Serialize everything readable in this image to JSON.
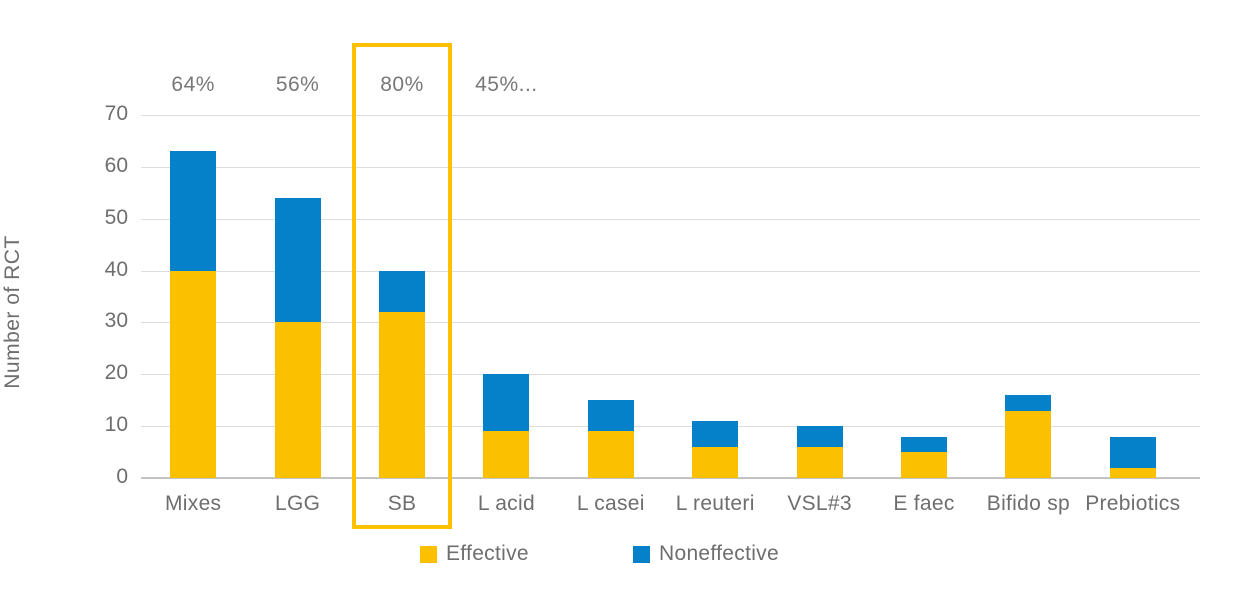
{
  "chart_data": {
    "type": "bar",
    "stacked": true,
    "title": "",
    "xlabel": "",
    "ylabel": "Number of RCT",
    "ylim": [
      0,
      70
    ],
    "yticks": [
      0,
      10,
      20,
      30,
      40,
      50,
      60,
      70
    ],
    "grid": true,
    "legend_position": "bottom",
    "categories": [
      "Mixes",
      "LGG",
      "SB",
      "L acid",
      "L casei",
      "L reuteri",
      "VSL#3",
      "E faec",
      "Bifido sp",
      "Prebiotics"
    ],
    "series": [
      {
        "name": "Effective",
        "color": "#FBC000",
        "values": [
          40,
          30,
          32,
          9,
          9,
          6,
          6,
          5,
          13,
          2
        ]
      },
      {
        "name": "Noneffective",
        "color": "#0581C9",
        "values": [
          23,
          24,
          8,
          11,
          6,
          5,
          4,
          3,
          3,
          6
        ]
      }
    ],
    "totals": [
      63,
      54,
      40,
      20,
      15,
      11,
      10,
      8,
      16,
      8
    ],
    "annotations": [
      {
        "category_index": 0,
        "text": "64%"
      },
      {
        "category_index": 1,
        "text": "56%"
      },
      {
        "category_index": 2,
        "text": "80%"
      },
      {
        "category_index": 3,
        "text": "45%..."
      }
    ],
    "highlight": {
      "category": "SB",
      "category_index": 2,
      "border_color": "#FFC000"
    }
  },
  "colors": {
    "effective": "#FBC000",
    "noneffective": "#0581C9",
    "gridline": "#dcdcdc",
    "axis_line": "#c3c3c3",
    "text": "#6e6e6e",
    "highlight_border": "#FFC000",
    "background": "#ffffff"
  }
}
